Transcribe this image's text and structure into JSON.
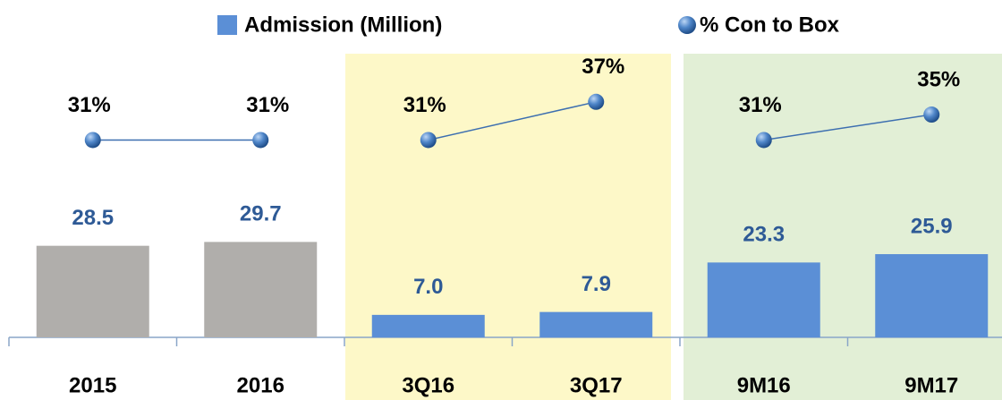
{
  "chart_data": {
    "type": "bar-line",
    "categories": [
      "2015",
      "2016",
      "3Q16",
      "3Q17",
      "9M16",
      "9M17"
    ],
    "series": [
      {
        "name": "Admission (Million)",
        "type": "bar",
        "color": "#5b8fd6",
        "bar_colors": [
          "#b0aeab",
          "#b0aeab",
          "#5b8fd6",
          "#5b8fd6",
          "#5b8fd6",
          "#5b8fd6"
        ],
        "values": [
          28.5,
          29.7,
          7.0,
          7.9,
          23.3,
          25.9
        ],
        "value_labels": [
          "28.5",
          "29.7",
          "7.0",
          "7.9",
          "23.3",
          "25.9"
        ]
      },
      {
        "name": "% Con to Box",
        "type": "line",
        "axis": "y2",
        "color": "#3d6fb0",
        "values": [
          31,
          31,
          31,
          37,
          31,
          35
        ],
        "value_labels": [
          "31%",
          "31%",
          "31%",
          "37%",
          "31%",
          "35%"
        ]
      }
    ],
    "ylim": [
      0,
      105
    ],
    "y2lim": [
      0,
      53
    ]
  }
}
